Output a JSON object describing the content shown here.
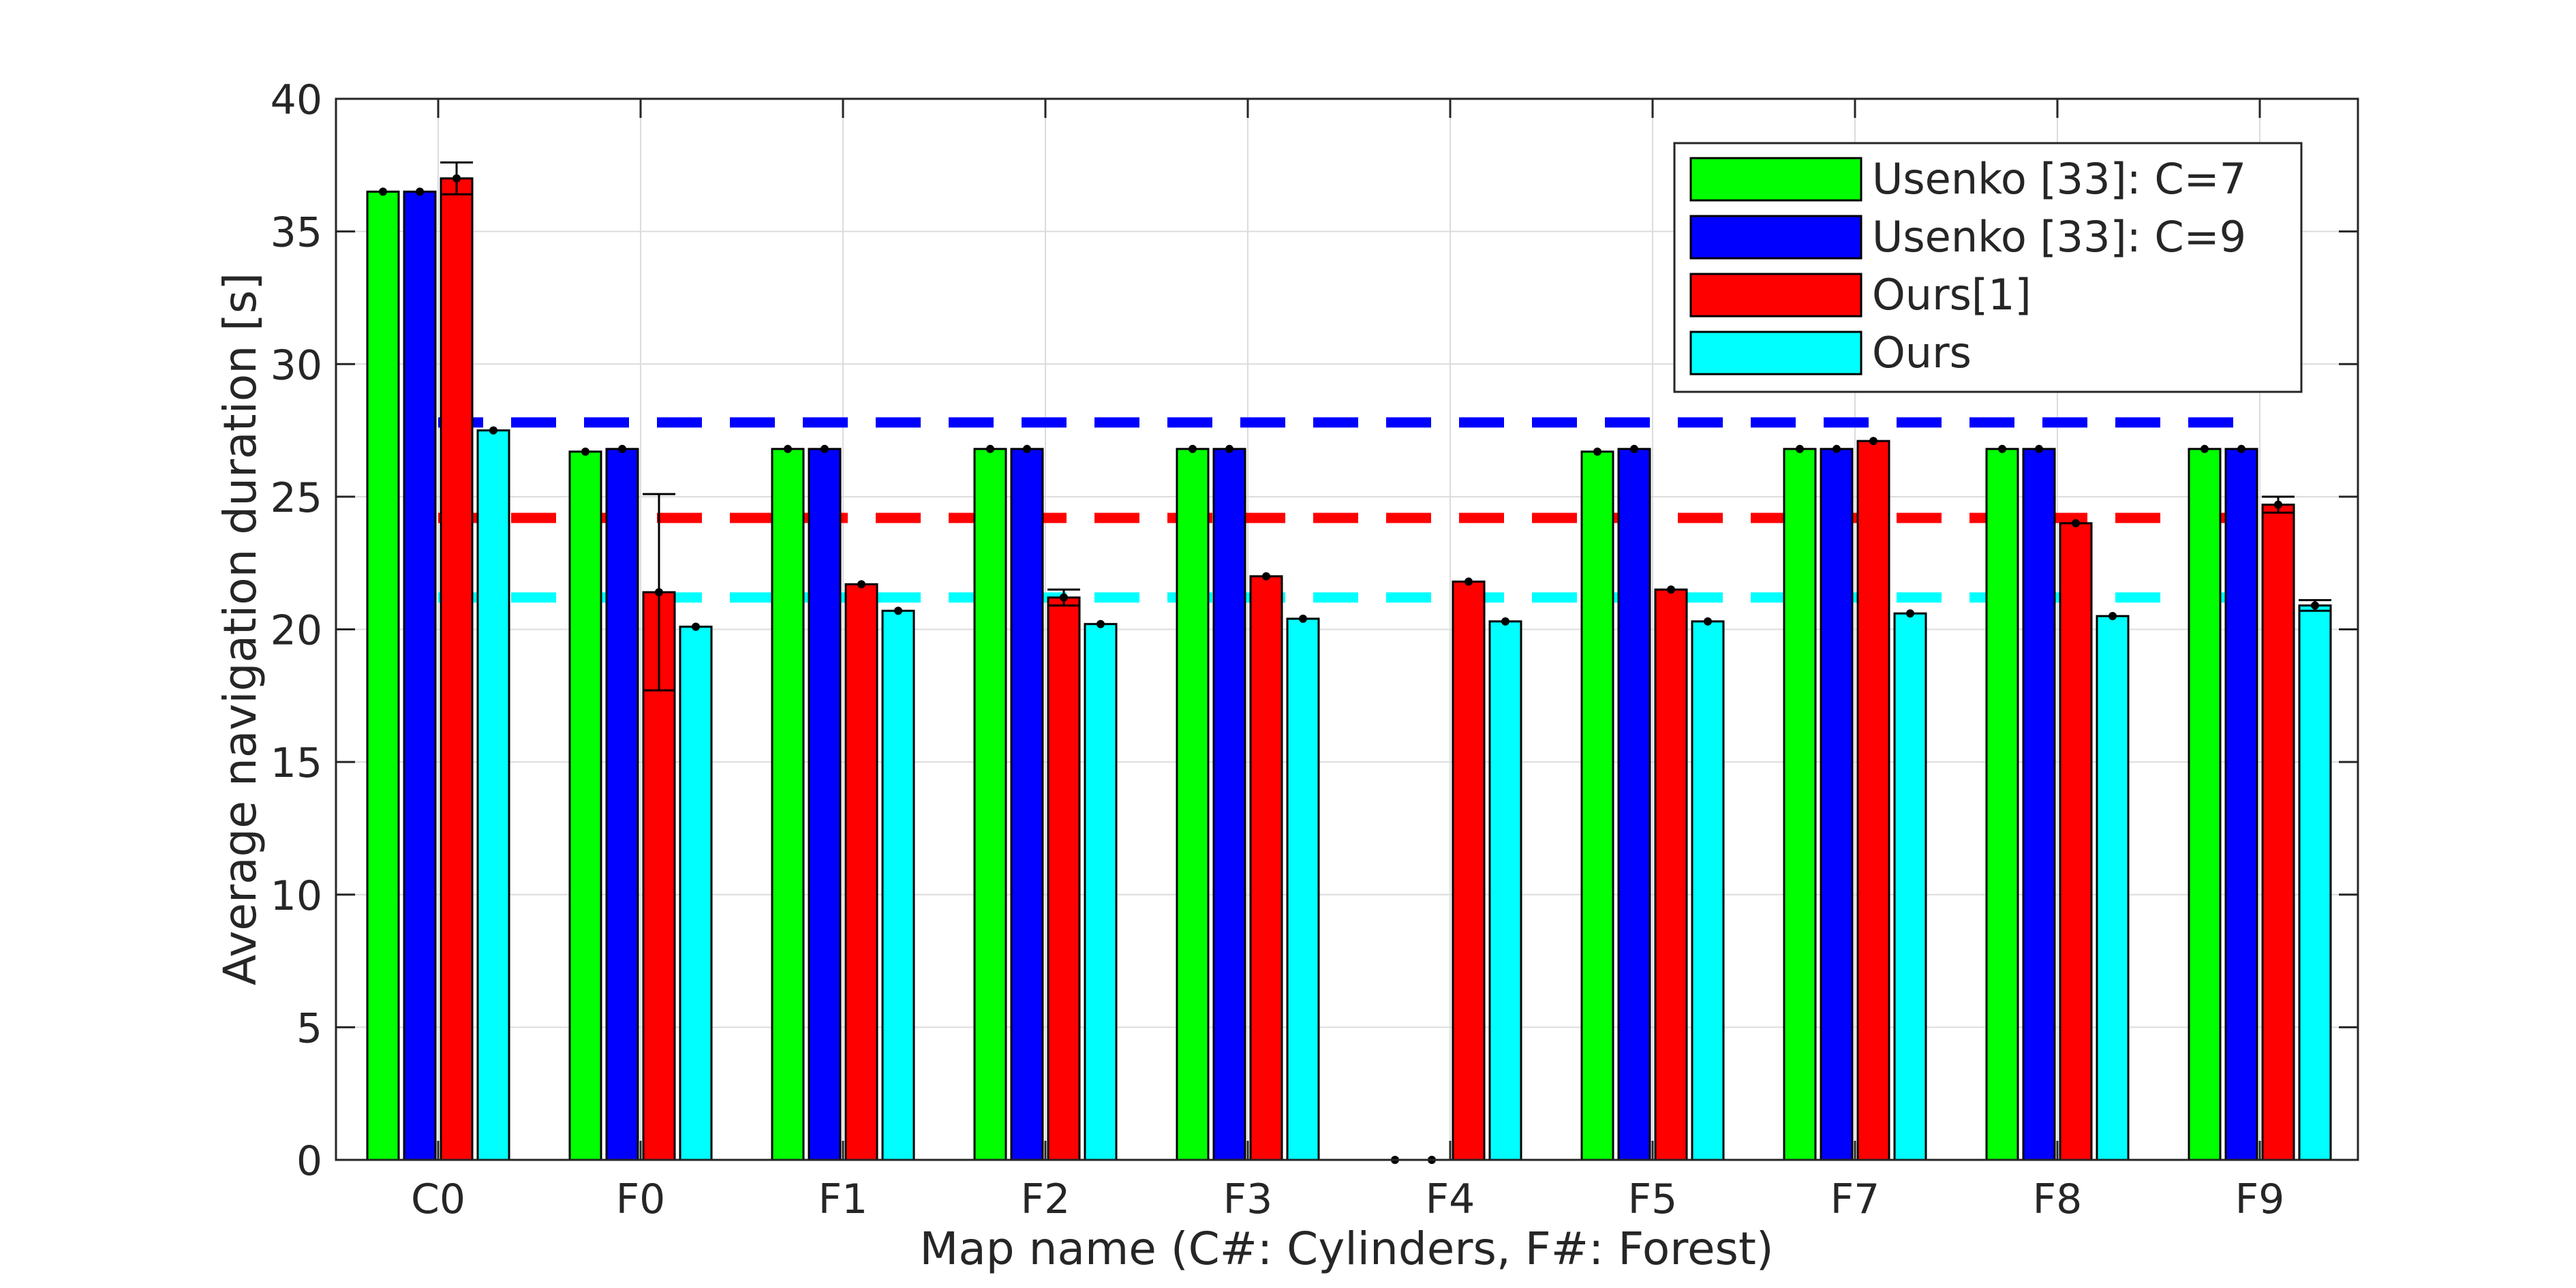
{
  "chart_data": {
    "type": "bar",
    "title": "",
    "xlabel": "Map name (C#: Cylinders, F#: Forest)",
    "ylabel": "Average navigation duration [s]",
    "ylim": [
      0,
      40
    ],
    "yticks": [
      "0",
      "5",
      "10",
      "15",
      "20",
      "25",
      "30",
      "35",
      "40"
    ],
    "categories": [
      "C0",
      "F0",
      "F1",
      "F2",
      "F3",
      "F4",
      "F5",
      "F7",
      "F8",
      "F9"
    ],
    "grid": true,
    "legend_position": "top-right",
    "series": [
      {
        "name": "Usenko [33]: C=7",
        "color": "#00ff00",
        "values": [
          36.5,
          26.7,
          26.8,
          26.8,
          26.8,
          0,
          26.7,
          26.8,
          26.8,
          26.8
        ],
        "errors": [
          0,
          0,
          0,
          0,
          0,
          0,
          0,
          0,
          0,
          0
        ]
      },
      {
        "name": "Usenko [33]: C=9",
        "color": "#0000ff",
        "values": [
          36.5,
          26.8,
          26.8,
          26.8,
          26.8,
          0,
          26.8,
          26.8,
          26.8,
          26.8
        ],
        "errors": [
          0,
          0,
          0,
          0,
          0,
          0,
          0,
          0,
          0,
          0
        ]
      },
      {
        "name": "Ours[1]",
        "color": "#ff0000",
        "values": [
          37.0,
          21.4,
          21.7,
          21.2,
          22.0,
          21.8,
          21.5,
          27.1,
          24.0,
          24.7
        ],
        "errors": [
          0.6,
          3.7,
          0.1,
          0.3,
          0.1,
          0.05,
          0.05,
          0.1,
          0.1,
          0.3
        ]
      },
      {
        "name": "Ours",
        "color": "#00ffff",
        "values": [
          27.5,
          20.1,
          20.7,
          20.2,
          20.4,
          20.3,
          20.3,
          20.6,
          20.5,
          20.9
        ],
        "errors": [
          0.05,
          0.1,
          0.1,
          0.05,
          0.05,
          0.05,
          0.05,
          0.05,
          0.05,
          0.2
        ]
      }
    ],
    "reference_lines": [
      {
        "color": "#0000ff",
        "value": 27.8
      },
      {
        "color": "#ff0000",
        "value": 24.2
      },
      {
        "color": "#00ffff",
        "value": 21.2
      }
    ]
  }
}
